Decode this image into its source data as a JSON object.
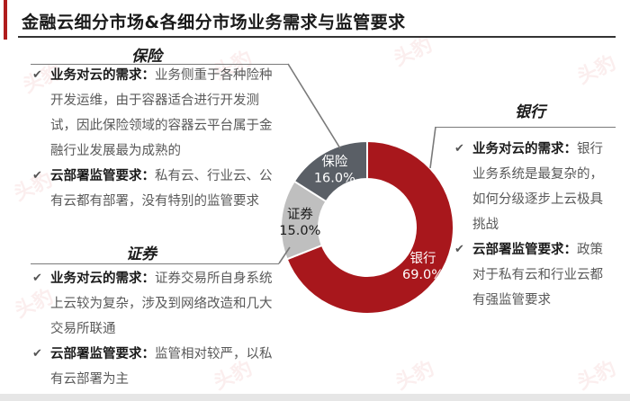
{
  "title": "金融云细分市场&各细分市场业务需求与监管要求",
  "sections": {
    "insurance": {
      "head": "保险",
      "need_label": "业务对云的需求：",
      "need_text": "业务侧重于各种险种开发运维，由于容器适合进行开发测试，因此保险领域的容器云平台属于金融行业发展最为成熟的",
      "reg_label": "云部署监管要求：",
      "reg_text": "私有云、行业云、公有云都有部署，没有特别的监管要求"
    },
    "securities": {
      "head": "证券",
      "need_label": "业务对云的需求：",
      "need_text": "证券交易所自身系统上云较为复杂，涉及到网络改造和几大交易所联通",
      "reg_label": "云部署监管要求：",
      "reg_text": "监管相对较严，以私有云部署为主"
    },
    "bank": {
      "head": "银行",
      "need_label": "业务对云的需求：",
      "need_text": "银行业务系统是最复杂的，如何分级逐步上云极具挑战",
      "reg_label": "云部署监管要求：",
      "reg_text": "政策对于私有云和行业云都有强监管要求"
    }
  },
  "chart_data": {
    "type": "pie",
    "donut": true,
    "categories": [
      "银行",
      "证券",
      "保险"
    ],
    "values": [
      69.0,
      15.0,
      16.0
    ],
    "labels": [
      "69.0%",
      "15.0%",
      "16.0%"
    ],
    "colors": [
      "#a8171c",
      "#bfbfbf",
      "#5a5f66"
    ]
  },
  "watermark": "头豹"
}
